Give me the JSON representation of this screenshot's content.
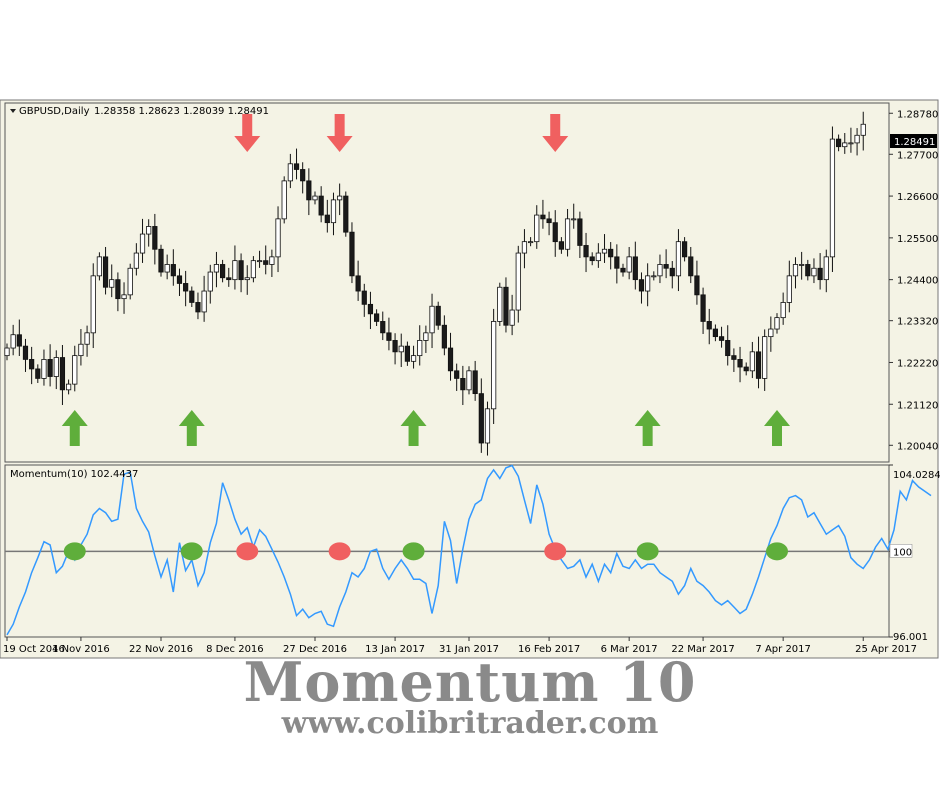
{
  "header": {
    "symbol_label": "GBPUSD,Daily",
    "ohlc": "1.28358 1.28623 1.28039 1.28491"
  },
  "price_panel": {
    "current_price": "1.28491",
    "y_ticks": [
      "1.28780",
      "1.27700",
      "1.26600",
      "1.25500",
      "1.24400",
      "1.23320",
      "1.22220",
      "1.21120",
      "1.20040"
    ]
  },
  "momentum_panel": {
    "label": "Momentum(10) 102.4437",
    "y_ticks": [
      "104.0284",
      "100",
      "96.001"
    ]
  },
  "x_ticks": [
    "19 Oct 2016",
    "4 Nov 2016",
    "22 Nov 2016",
    "8 Dec 2016",
    "27 Dec 2016",
    "13 Jan 2017",
    "31 Jan 2017",
    "16 Feb 2017",
    "6 Mar 2017",
    "22 Mar 2017",
    "7 Apr 2017",
    "25 Apr 2017"
  ],
  "caption": {
    "title": "Momentum 10",
    "url": "www.colibritrader.com"
  },
  "colors": {
    "panel_bg": "#f4f3e5",
    "bull_candle": "#ffffff",
    "bear_candle": "#1a1a1a",
    "momentum_line": "#3399ff",
    "buy_signal": "#5fae3b",
    "sell_signal": "#f06060",
    "caption_text": "#8a8a8a"
  },
  "chart_data": [
    {
      "type": "candlestick",
      "title": "GBPUSD,Daily",
      "ylim": [
        1.196,
        1.2905
      ],
      "x_index_range": [
        0,
        139
      ],
      "closes": [
        1.226,
        1.2295,
        1.2265,
        1.223,
        1.2205,
        1.218,
        1.223,
        1.2185,
        1.2235,
        1.215,
        1.2165,
        1.224,
        1.227,
        1.23,
        1.245,
        1.25,
        1.242,
        1.244,
        1.239,
        1.24,
        1.247,
        1.251,
        1.256,
        1.258,
        1.252,
        1.246,
        1.248,
        1.245,
        1.243,
        1.241,
        1.238,
        1.2355,
        1.241,
        1.246,
        1.248,
        1.2445,
        1.244,
        1.249,
        1.244,
        1.2445,
        1.249,
        1.249,
        1.248,
        1.25,
        1.26,
        1.27,
        1.2745,
        1.273,
        1.27,
        1.265,
        1.266,
        1.261,
        1.259,
        1.265,
        1.266,
        1.2565,
        1.245,
        1.241,
        1.2375,
        1.235,
        1.233,
        1.23,
        1.228,
        1.225,
        1.2265,
        1.2225,
        1.224,
        1.228,
        1.23,
        1.237,
        1.232,
        1.226,
        1.22,
        1.218,
        1.215,
        1.22,
        1.214,
        1.201,
        1.21,
        1.233,
        1.242,
        1.232,
        1.236,
        1.251,
        1.254,
        1.254,
        1.261,
        1.26,
        1.259,
        1.254,
        1.252,
        1.26,
        1.26,
        1.253,
        1.25,
        1.249,
        1.251,
        1.252,
        1.25,
        1.247,
        1.246,
        1.25,
        1.244,
        1.241,
        1.245,
        1.245,
        1.248,
        1.247,
        1.245,
        1.254,
        1.25,
        1.245,
        1.24,
        1.233,
        1.231,
        1.229,
        1.228,
        1.224,
        1.223,
        1.221,
        1.22,
        1.225,
        1.218,
        1.229,
        1.231,
        1.234,
        1.238,
        1.245,
        1.248,
        1.248,
        1.245,
        1.247,
        1.244,
        1.25,
        1.281,
        1.279,
        1.28,
        1.28,
        1.282,
        1.2849
      ],
      "signals": [
        {
          "type": "buy",
          "x_index": 11
        },
        {
          "type": "buy",
          "x_index": 30
        },
        {
          "type": "sell",
          "x_index": 39
        },
        {
          "type": "sell",
          "x_index": 54
        },
        {
          "type": "buy",
          "x_index": 66
        },
        {
          "type": "sell",
          "x_index": 89
        },
        {
          "type": "buy",
          "x_index": 104
        },
        {
          "type": "buy",
          "x_index": 125
        }
      ]
    },
    {
      "type": "line",
      "title": "Momentum(10) 102.4437",
      "ylim": [
        96.001,
        104.0284
      ],
      "reference_line": 100,
      "values": [
        96.1,
        96.6,
        97.4,
        98.1,
        99.0,
        99.7,
        100.45,
        100.3,
        99.0,
        99.3,
        100.0,
        99.6,
        100.3,
        100.8,
        101.7,
        102.0,
        101.8,
        101.4,
        101.5,
        103.6,
        103.7,
        102.0,
        101.4,
        100.9,
        99.8,
        98.8,
        99.6,
        98.1,
        100.4,
        99.1,
        99.6,
        98.4,
        99.0,
        100.4,
        101.3,
        103.2,
        102.4,
        101.5,
        100.8,
        101.1,
        100.2,
        101.0,
        100.7,
        100.1,
        99.5,
        98.8,
        98.0,
        97.0,
        97.3,
        96.9,
        97.1,
        97.2,
        96.6,
        96.5,
        97.4,
        98.1,
        99.0,
        98.8,
        99.2,
        100.0,
        100.1,
        99.2,
        98.7,
        99.2,
        99.6,
        99.2,
        98.7,
        98.7,
        98.5,
        97.1,
        98.4,
        101.4,
        100.5,
        98.5,
        100.1,
        101.5,
        102.2,
        102.4,
        103.4,
        103.8,
        103.4,
        103.9,
        104.0,
        103.5,
        102.4,
        101.3,
        103.1,
        102.2,
        100.8,
        100.1,
        99.6,
        99.2,
        99.3,
        99.6,
        98.8,
        99.4,
        98.6,
        99.4,
        99.0,
        99.9,
        99.3,
        99.2,
        99.6,
        99.2,
        99.4,
        99.4,
        99.0,
        98.8,
        98.6,
        98.0,
        98.4,
        99.2,
        98.6,
        98.4,
        98.1,
        97.7,
        97.5,
        97.7,
        97.4,
        97.1,
        97.3,
        98.0,
        98.8,
        99.7,
        100.6,
        101.2,
        102.0,
        102.5,
        102.6,
        102.4,
        101.6,
        101.8,
        101.3,
        100.8,
        101.0,
        101.2,
        100.7,
        99.7,
        99.4,
        99.2,
        99.6,
        100.2,
        100.6,
        100.1,
        101.0,
        102.8,
        102.4,
        103.3,
        103.0,
        102.8,
        102.6
      ]
    }
  ]
}
